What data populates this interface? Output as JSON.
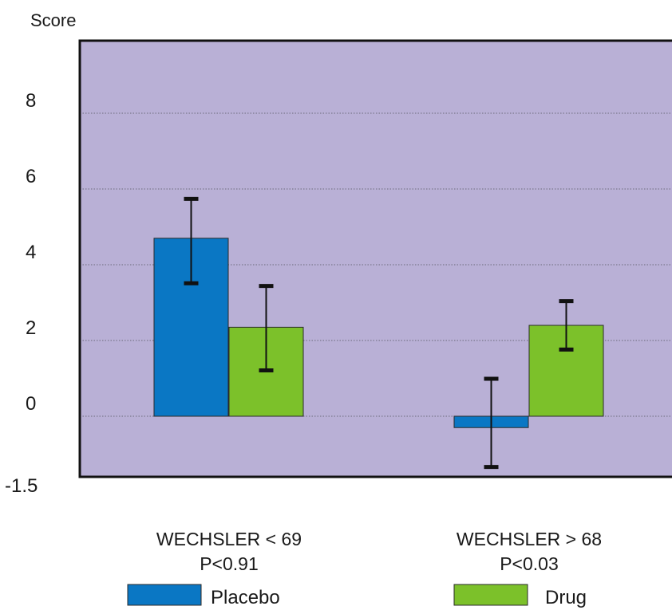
{
  "chart_data": {
    "type": "bar",
    "ylabel": "Score",
    "ylim": [
      -1.5,
      10
    ],
    "yticks": [
      {
        "value": 8,
        "label": "8"
      },
      {
        "value": 6,
        "label": "6"
      },
      {
        "value": 4,
        "label": "4"
      },
      {
        "value": 2,
        "label": "2"
      },
      {
        "value": 0,
        "label": "0"
      },
      {
        "value": -1.5,
        "label": "-1.5"
      }
    ],
    "grid": true,
    "legend_position": "bottom",
    "categories": [
      {
        "label": "WECHSLER < 69",
        "sublabel": "P<0.91"
      },
      {
        "label": "WECHSLER > 68",
        "sublabel": "P<0.03"
      }
    ],
    "series": [
      {
        "name": "Placebo",
        "color": "#0a77c4",
        "values": [
          4.7,
          -0.3
        ],
        "error_low": [
          3.5,
          -1.35
        ],
        "error_high": [
          5.75,
          1.0
        ]
      },
      {
        "name": "Drug",
        "color": "#7cc12a",
        "values": [
          2.35,
          2.4
        ],
        "error_low": [
          1.2,
          1.75
        ],
        "error_high": [
          3.45,
          3.05
        ]
      }
    ],
    "colors": {
      "plot_background": "#b9b0d6",
      "axis": "#111111"
    }
  }
}
